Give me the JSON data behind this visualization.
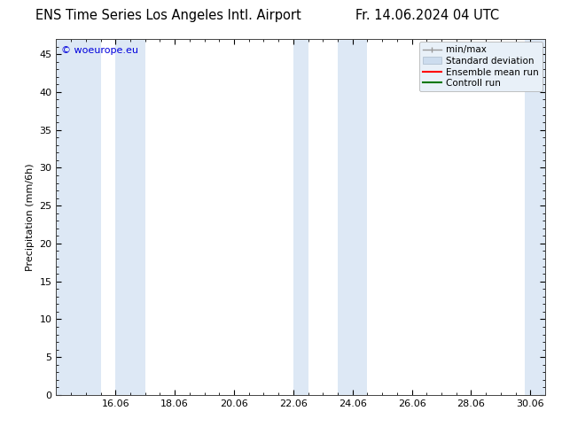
{
  "title_left": "ENS Time Series Los Angeles Intl. Airport",
  "title_right": "Fr. 14.06.2024 04 UTC",
  "ylabel": "Precipitation (mm/6h)",
  "xlabel": "",
  "ylim": [
    0,
    47
  ],
  "yticks": [
    0,
    5,
    10,
    15,
    20,
    25,
    30,
    35,
    40,
    45
  ],
  "xtick_positions": [
    16,
    18,
    20,
    22,
    24,
    26,
    28,
    30
  ],
  "xtick_labels": [
    "16.06",
    "18.06",
    "20.06",
    "22.06",
    "24.06",
    "26.06",
    "28.06",
    "30.06"
  ],
  "xlim": [
    14.0,
    30.5
  ],
  "bg_color": "#ffffff",
  "plot_bg_color": "#ffffff",
  "shaded_bands": [
    [
      14.0,
      15.5
    ],
    [
      16.0,
      17.0
    ],
    [
      22.0,
      22.5
    ],
    [
      23.5,
      24.5
    ],
    [
      29.8,
      30.5
    ]
  ],
  "watermark_text": "© woeurope.eu",
  "watermark_color": "#0000dd",
  "legend_labels": [
    "min/max",
    "Standard deviation",
    "Ensemble mean run",
    "Controll run"
  ],
  "minmax_color": "#999999",
  "std_fill_color": "#ccdcee",
  "std_edge_color": "#aabbcc",
  "mean_color": "#ff0000",
  "control_color": "#007700",
  "band_color": "#dde8f5",
  "font_size": 8,
  "title_font_size": 10.5
}
